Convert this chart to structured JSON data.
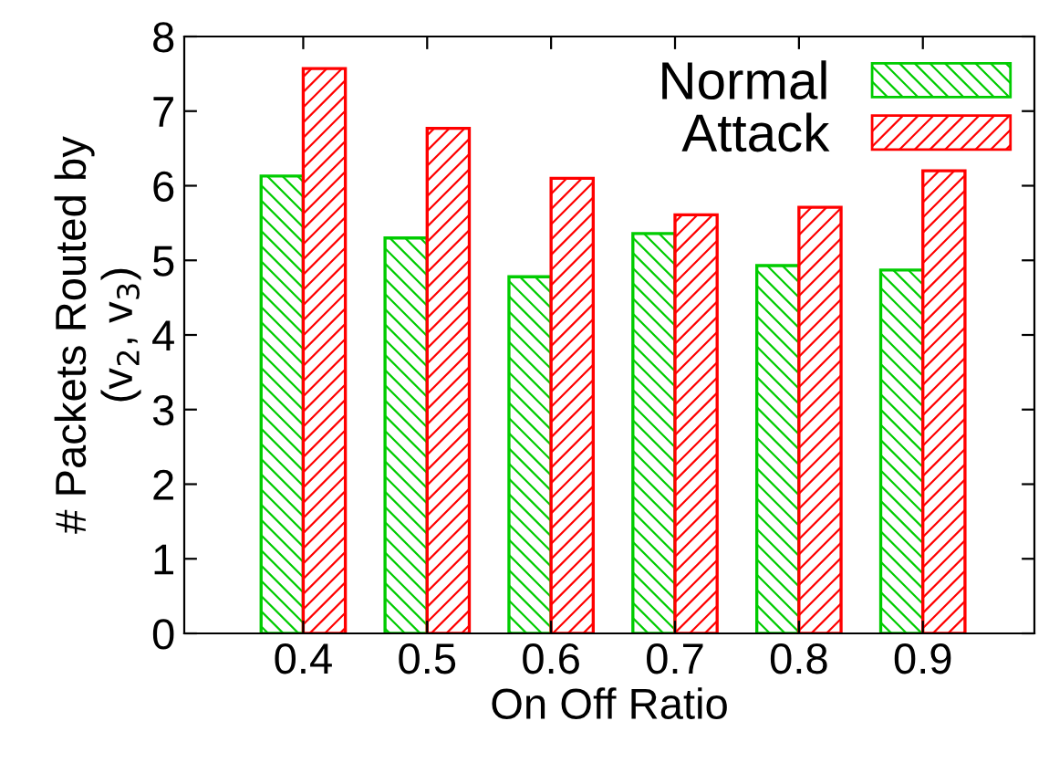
{
  "chart_data": {
    "type": "bar",
    "xlabel": "On Off Ratio",
    "ylabel": "# Packets Routed by\n(v$_{2}$, v$_{3}$)",
    "categories": [
      "0.4",
      "0.5",
      "0.6",
      "0.7",
      "0.8",
      "0.9"
    ],
    "series": [
      {
        "name": "Normal",
        "color": "#00cc00",
        "values": [
          6.13,
          5.3,
          4.78,
          5.36,
          4.93,
          4.87
        ]
      },
      {
        "name": "Attack",
        "color": "#ff0000",
        "values": [
          7.57,
          6.77,
          6.1,
          5.61,
          5.71,
          6.2
        ]
      }
    ],
    "ylim": [
      0,
      8
    ],
    "yticks": [
      0,
      1,
      2,
      3,
      4,
      5,
      6,
      7,
      8
    ],
    "grid": false,
    "legend": "top right"
  }
}
